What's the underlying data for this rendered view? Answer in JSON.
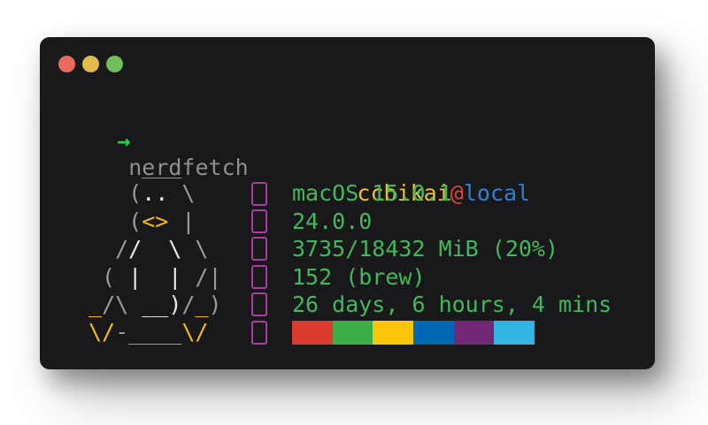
{
  "window": {
    "traffic_lights": [
      {
        "name": "close-button",
        "color": "#e9695e"
      },
      {
        "name": "minimize-button",
        "color": "#dfbd4c"
      },
      {
        "name": "zoom-button",
        "color": "#71bc5b"
      }
    ]
  },
  "prompt": {
    "symbol": "→",
    "command": "nerdfetch"
  },
  "fetch": {
    "title": {
      "user": "ccbikai",
      "separator": "@",
      "host": "local"
    },
    "ascii_art": {
      "subject": "tux-penguin",
      "lines": [
        [
          {
            "t": "    ___",
            "c": "dim"
          }
        ],
        [
          {
            "t": "   (",
            "c": "dim"
          },
          {
            "t": ".. ",
            "c": "bright"
          },
          {
            "t": "\\",
            "c": "dim"
          }
        ],
        [
          {
            "t": "   (",
            "c": "dim"
          },
          {
            "t": "<> ",
            "c": "yellow"
          },
          {
            "t": "|",
            "c": "dim"
          }
        ],
        [
          {
            "t": "  /",
            "c": "dim"
          },
          {
            "t": "/  \\ ",
            "c": "bright"
          },
          {
            "t": "\\",
            "c": "dim"
          }
        ],
        [
          {
            "t": " ( ",
            "c": "dim"
          },
          {
            "t": "|  | ",
            "c": "bright"
          },
          {
            "t": "/|",
            "c": "dim"
          }
        ],
        [
          {
            "t": "_",
            "c": "yellow"
          },
          {
            "t": "/\\ ",
            "c": "dim"
          },
          {
            "t": "__)",
            "c": "bright"
          },
          {
            "t": "/",
            "c": "dim"
          },
          {
            "t": "_",
            "c": "yellow"
          },
          {
            "t": ")",
            "c": "dim"
          }
        ],
        [
          {
            "t": "\\/",
            "c": "yellow"
          },
          {
            "t": "-____",
            "c": "dim"
          },
          {
            "t": "\\/",
            "c": "yellow"
          }
        ]
      ]
    },
    "info_rows": [
      {
        "id": "os",
        "icon": "missing-glyph-box",
        "text": "macOS 15.0.1"
      },
      {
        "id": "kernel",
        "icon": "missing-glyph-box",
        "text": "24.0.0"
      },
      {
        "id": "memory",
        "icon": "missing-glyph-box",
        "text": "3735/18432 MiB (20%)"
      },
      {
        "id": "packages",
        "icon": "missing-glyph-box",
        "text": "152 (brew)"
      },
      {
        "id": "uptime",
        "icon": "missing-glyph-box",
        "text": "26 days, 6 hours, 4 mins"
      },
      {
        "id": "palette",
        "icon": "missing-glyph-box"
      }
    ],
    "palette_colors": [
      "#da3b2e",
      "#3cae48",
      "#fcc508",
      "#0069b4",
      "#722779",
      "#31b5e4"
    ]
  },
  "colors": {
    "page_bg": "#ffffff",
    "window_bg": "#19191b",
    "prompt_green": "#27d145",
    "command_gray": "#8f8f8f",
    "art_dim": "#9b9b9b",
    "art_bright": "#e9e9e9",
    "art_yellow": "#f6bd0e",
    "user_yellow": "#efc02c",
    "at_red": "#d8453a",
    "host_blue": "#2f80d0",
    "info_green": "#40b95c",
    "icon_magenta": "#a6409a"
  }
}
